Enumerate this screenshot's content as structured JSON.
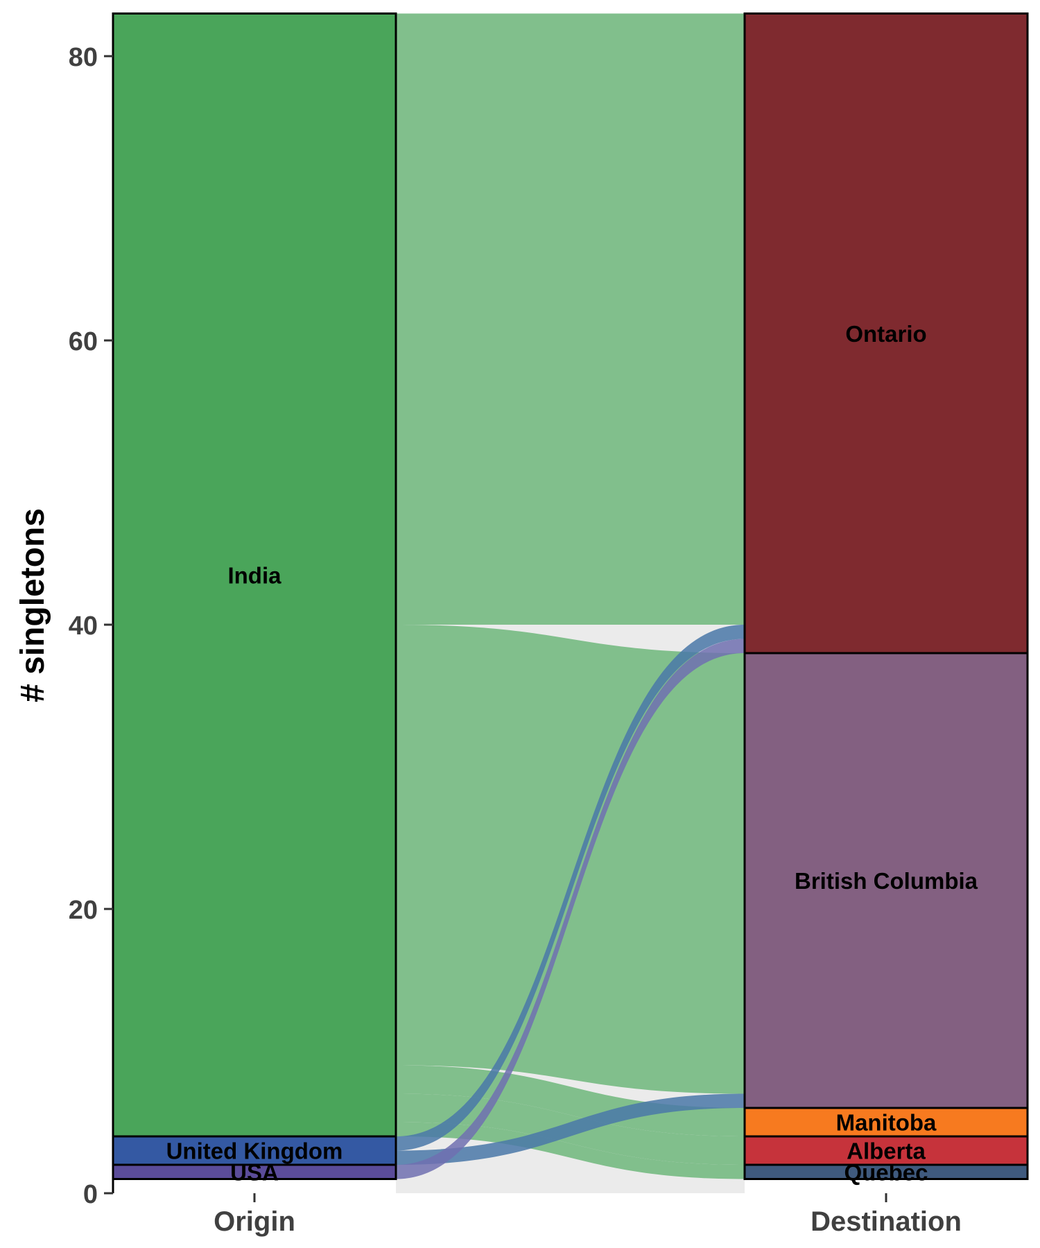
{
  "chart_data": {
    "type": "alluvial",
    "ylabel": "# singletons",
    "ylim": [
      0,
      83
    ],
    "yticks": [
      0,
      20,
      40,
      60,
      80
    ],
    "axes": [
      "Origin",
      "Destination"
    ],
    "origin_strata": [
      {
        "name": "India",
        "value": 79,
        "color": "#4aa55a"
      },
      {
        "name": "United Kingdom",
        "value": 2,
        "color": "#3459a3"
      },
      {
        "name": "USA",
        "value": 1,
        "color": "#5b4c9a"
      }
    ],
    "destination_strata": [
      {
        "name": "Ontario",
        "value": 45,
        "color": "#7f2a2f"
      },
      {
        "name": "British Columbia",
        "value": 32,
        "color": "#836081"
      },
      {
        "name": "Manitoba",
        "value": 2,
        "color": "#f77a1f"
      },
      {
        "name": "Alberta",
        "value": 2,
        "color": "#c6333b"
      },
      {
        "name": "Quebec",
        "value": 1,
        "color": "#3f5a7e"
      }
    ],
    "flows": [
      {
        "from": "India",
        "to": "Ontario",
        "value": 43
      },
      {
        "from": "India",
        "to": "British Columbia",
        "value": 31
      },
      {
        "from": "India",
        "to": "Manitoba",
        "value": 2
      },
      {
        "from": "India",
        "to": "Alberta",
        "value": 2
      },
      {
        "from": "India",
        "to": "Quebec",
        "value": 1
      },
      {
        "from": "United Kingdom",
        "to": "Ontario",
        "value": 1
      },
      {
        "from": "United Kingdom",
        "to": "British Columbia",
        "value": 1
      },
      {
        "from": "USA",
        "to": "Ontario",
        "value": 1
      }
    ],
    "flow_colors": {
      "India": "#81bf8c",
      "United Kingdom": "#4a78a8",
      "USA": "#7070b0"
    },
    "gap_color": "#ebebeb"
  }
}
